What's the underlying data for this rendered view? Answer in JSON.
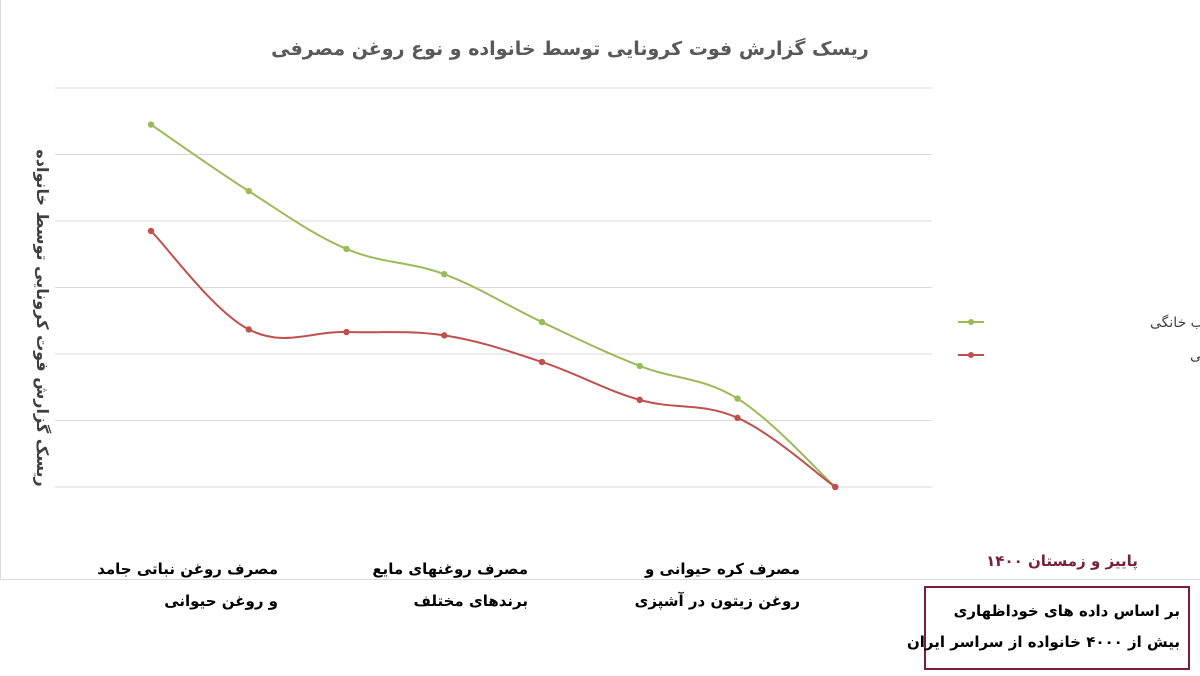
{
  "chart_data": {
    "type": "line",
    "title": "ریسک گزارش فوت کرونایی توسط خانواده و نوع روغن مصرفی",
    "ylabel": "ریسک گزارش فوت کرونایی توسط خانواده",
    "xlabel": "",
    "ylim": [
      0,
      6
    ],
    "ytick_labels_shown": false,
    "grid": true,
    "legend_position": "right",
    "categories": [
      "مصرف روغن نباتی جامد و روغن حیوانی",
      "",
      "",
      "مصرف روغنهای مایع برندهای مختلف",
      "",
      "",
      "مصرف کره حیوانی و روغن زیتون در آشپزی",
      "",
      ""
    ],
    "category_labels": [
      {
        "line1": "مصرف روغن نباتی جامد",
        "line2": "و روغن حیوانی"
      },
      {
        "line1": "مصرف روغنهای مایع",
        "line2": "برندهای مختلف"
      },
      {
        "line1": "مصرف کره حیوانی و",
        "line2": "روغن زیتون در آشپزی"
      }
    ],
    "series": [
      {
        "name": "دستگاه تصفیه آب خانگی",
        "color": "#9bbb59",
        "values": [
          5.45,
          4.45,
          3.58,
          3.2,
          2.48,
          1.82,
          1.33,
          0,
          0
        ]
      },
      {
        "name": "بدون دستگاه تصفیه آب خانگی",
        "color": "#c0504d",
        "values": [
          3.85,
          2.37,
          2.33,
          2.28,
          1.88,
          1.31,
          1.04,
          0,
          0
        ]
      }
    ],
    "series_end_value": 0
  },
  "annotations": {
    "season": "پاییز و زمستان ۱۴۰۰",
    "source_line1": "بر اساس داده های خوداظهاری",
    "source_line2": "بیش از ۴۰۰۰ خانواده از سراسر ایران"
  }
}
